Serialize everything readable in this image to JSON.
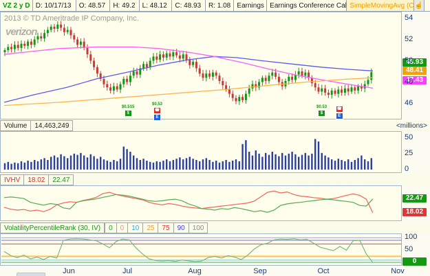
{
  "header": {
    "symbol": "VZ 2 y D",
    "fields": [
      "D: 10/17/13",
      "O: 48.57",
      "H: 49.2",
      "L: 48.12",
      "C: 48.93",
      "R: 1.08"
    ],
    "buttons": [
      "Earnings",
      "Earnings Conference Call"
    ],
    "study": "SimpleMovingAvg (CL",
    "icon": "pointer-hand-icon"
  },
  "watermark": "2013 © TD Ameritrade IP Company, Inc.",
  "logo": "verizon",
  "price_axis": {
    "ticks": [
      54,
      52,
      50,
      48,
      46
    ],
    "labels": [
      {
        "value": "48.93",
        "color": "#129a12"
      },
      {
        "value": "48.41",
        "color": "#f2a20d"
      },
      {
        "value": "47.43",
        "color": "#fb3efb"
      }
    ]
  },
  "volume": {
    "title": "Volume",
    "value": "14,463,249",
    "unit": "<millions>",
    "yticks": [
      50,
      25,
      0
    ]
  },
  "ivhv": {
    "title": "IVHV",
    "iv_value": "18.02",
    "hv_value": "22.47",
    "labels": [
      {
        "value": "22.47",
        "color": "#129a12"
      },
      {
        "value": "18.02",
        "color": "#e03535"
      }
    ]
  },
  "vpr": {
    "title": "VolatilityPercentileRank (30, IV)",
    "levels": [
      {
        "value": "0",
        "color": "#2e9e2e"
      },
      {
        "value": "0",
        "color": "#f08ca0"
      },
      {
        "value": "10",
        "color": "#30aee0"
      },
      {
        "value": "25",
        "color": "#f0a030"
      },
      {
        "value": "75",
        "color": "#e03030"
      },
      {
        "value": "90",
        "color": "#4040f0"
      },
      {
        "value": "100",
        "color": "#8c8c8c"
      }
    ],
    "yticks": [
      "100",
      "50"
    ],
    "current": "0"
  },
  "months": [
    "Jun",
    "Jul",
    "Aug",
    "Sep",
    "Oct",
    "Nov"
  ],
  "chart_data": [
    {
      "type": "candlestick",
      "title": "VZ daily price",
      "ylim": [
        44.5,
        54.55
      ],
      "yticks": [
        54,
        52,
        50,
        48,
        46
      ],
      "last_close": 48.93,
      "closes": [
        51.0,
        51.3,
        51.1,
        51.5,
        51.2,
        51.6,
        51.4,
        51.8,
        51.5,
        52.0,
        52.3,
        52.1,
        52.6,
        52.9,
        53.2,
        53.0,
        53.4,
        53.1,
        52.7,
        52.9,
        52.4,
        52.0,
        51.5,
        51.8,
        51.2,
        50.6,
        50.0,
        49.4,
        48.8,
        48.3,
        47.8,
        47.5,
        47.2,
        47.6,
        47.3,
        47.8,
        48.3,
        48.0,
        48.6,
        49.0,
        48.7,
        49.3,
        49.7,
        49.4,
        50.0,
        50.4,
        50.1,
        50.6,
        50.3,
        50.7,
        50.4,
        50.8,
        50.5,
        50.2,
        50.6,
        50.1,
        49.6,
        49.9,
        49.3,
        48.8,
        48.4,
        48.8,
        48.5,
        48.9,
        48.6,
        48.1,
        47.7,
        47.3,
        46.9,
        46.5,
        46.2,
        46.6,
        46.3,
        46.9,
        47.4,
        47.8,
        47.5,
        48.0,
        48.4,
        48.1,
        48.6,
        48.9,
        48.5,
        48.0,
        47.6,
        48.1,
        48.5,
        48.2,
        48.7,
        49.0,
        48.6,
        48.9,
        48.4,
        47.9,
        47.5,
        47.1,
        47.4,
        47.0,
        46.8,
        47.2,
        46.9,
        47.3,
        47.0,
        47.4,
        47.1,
        47.5,
        47.2,
        47.6,
        47.4,
        47.8,
        48.2,
        48.93
      ],
      "up_color": "#149614",
      "down_color": "#c23b3b",
      "overlays": [
        {
          "name": "SimpleMovingAvg-blue",
          "color": "#5a5af0",
          "end_value": 49.05,
          "points": [
            [
              0,
              46.1
            ],
            [
              0.08,
              46.8
            ],
            [
              0.17,
              47.5
            ],
            [
              0.25,
              48.3
            ],
            [
              0.33,
              48.9
            ],
            [
              0.42,
              49.6
            ],
            [
              0.5,
              50.1
            ],
            [
              0.57,
              50.4
            ],
            [
              0.63,
              50.3
            ],
            [
              0.7,
              50.0
            ],
            [
              0.78,
              49.7
            ],
            [
              0.86,
              49.4
            ],
            [
              0.93,
              49.2
            ],
            [
              1,
              49.05
            ]
          ]
        },
        {
          "name": "SimpleMovingAvg-magenta",
          "color": "#fb5ffb",
          "end_value": 47.43,
          "points": [
            [
              0,
              50.6
            ],
            [
              0.08,
              50.9
            ],
            [
              0.15,
              51.15
            ],
            [
              0.25,
              51.3
            ],
            [
              0.35,
              51.3
            ],
            [
              0.42,
              51.15
            ],
            [
              0.5,
              50.8
            ],
            [
              0.57,
              50.4
            ],
            [
              0.65,
              49.8
            ],
            [
              0.72,
              49.2
            ],
            [
              0.8,
              48.6
            ],
            [
              0.88,
              48.1
            ],
            [
              0.95,
              47.7
            ],
            [
              1,
              47.43
            ]
          ]
        },
        {
          "name": "SimpleMovingAvg-orange",
          "color": "#ffb34d",
          "end_value": 48.41,
          "points": [
            [
              0,
              45.8
            ],
            [
              0.15,
              46.1
            ],
            [
              0.3,
              46.5
            ],
            [
              0.45,
              46.9
            ],
            [
              0.6,
              47.3
            ],
            [
              0.72,
              47.7
            ],
            [
              0.82,
              48.0
            ],
            [
              0.92,
              48.25
            ],
            [
              1,
              48.41
            ]
          ]
        }
      ],
      "markers": [
        {
          "x": 0.338,
          "label": "$0.515",
          "type": "dividend"
        },
        {
          "x": 0.417,
          "label": "$0.53",
          "type": "earnings+dividend"
        },
        {
          "x": 0.863,
          "label": "$0.53",
          "type": "dividend"
        },
        {
          "x": 0.911,
          "label": "",
          "type": "earnings"
        }
      ]
    },
    {
      "type": "bar",
      "title": "Volume (millions)",
      "color": "#2a3f9f",
      "ylim": [
        0,
        55
      ],
      "yticks": [
        50,
        25,
        0
      ],
      "values": [
        10,
        12,
        9,
        11,
        10,
        13,
        11,
        14,
        12,
        15,
        13,
        16,
        18,
        15,
        20,
        22,
        19,
        24,
        21,
        18,
        22,
        25,
        23,
        26,
        22,
        19,
        24,
        21,
        17,
        20,
        16,
        14,
        12,
        15,
        13,
        17,
        36,
        32,
        28,
        22,
        18,
        15,
        17,
        14,
        12,
        11,
        13,
        12,
        14,
        16,
        13,
        15,
        17,
        19,
        16,
        18,
        20,
        17,
        15,
        13,
        16,
        18,
        15,
        12,
        14,
        11,
        13,
        15,
        12,
        14,
        16,
        13,
        40,
        46,
        28,
        22,
        30,
        25,
        20,
        26,
        23,
        28,
        24,
        21,
        26,
        22,
        25,
        28,
        24,
        20,
        23,
        26,
        22,
        25,
        48,
        44,
        26,
        22,
        19,
        16,
        14,
        17,
        15,
        13,
        16,
        12,
        15,
        18,
        22,
        16,
        13,
        18
      ]
    },
    {
      "type": "line",
      "title": "IVHV",
      "ylim": [
        15.4,
        26.6
      ],
      "series": [
        {
          "name": "IV",
          "color": "#ee6655",
          "last": 18.02,
          "values": [
            19.8,
            19.2,
            18.9,
            19.1,
            18.6,
            18.9,
            18.4,
            19.2,
            20.6,
            21.2,
            21.6,
            21.4,
            22.0,
            22.4,
            23.0,
            24.2,
            24.6,
            23.9,
            23.4,
            23.0,
            22.6,
            22.2,
            21.4,
            20.9,
            20.6,
            21.0,
            20.7,
            20.2,
            19.8,
            19.6,
            19.4,
            19.7,
            19.9,
            20.2,
            20.4,
            20.7,
            20.9,
            21.2,
            21.8,
            23.2,
            24.6,
            25.0,
            24.4,
            24.7,
            23.9,
            23.4,
            23.2,
            22.9,
            22.7,
            22.4,
            22.6,
            23.1,
            23.6,
            24.1,
            23.6,
            22.4,
            18.02
          ]
        },
        {
          "name": "HV",
          "color": "#55aa55",
          "last": 22.47,
          "values": [
            22.9,
            23.1,
            22.9,
            22.6,
            21.4,
            20.9,
            20.5,
            21.0,
            20.7,
            19.6,
            19.3,
            21.4,
            21.9,
            22.2,
            22.5,
            23.0,
            23.4,
            23.9,
            23.7,
            23.4,
            22.9,
            22.4,
            21.9,
            21.7,
            21.9,
            22.2,
            22.4,
            21.9,
            20.9,
            20.2,
            19.4,
            19.2,
            18.9,
            19.4,
            19.2,
            19.7,
            19.4,
            18.9,
            18.4,
            18.7,
            18.2,
            18.9,
            20.4,
            20.9,
            21.2,
            21.4,
            21.7,
            21.9,
            22.2,
            22.4,
            22.2,
            21.9,
            21.7,
            21.4,
            20.4,
            20.2,
            22.47
          ]
        }
      ]
    },
    {
      "type": "line",
      "title": "VolatilityPercentileRank (30, IV)",
      "ylim": [
        -10,
        115
      ],
      "yticks": [
        100,
        50,
        0
      ],
      "ref_lines": [
        {
          "v": 100,
          "color": "#b0b0d8"
        },
        {
          "v": 90,
          "color": "#9090cc"
        },
        {
          "v": 75,
          "color": "#e86a6a"
        },
        {
          "v": 25,
          "color": "#f7c55e"
        },
        {
          "v": 10,
          "color": "#7ecbe0"
        },
        {
          "v": 2,
          "color": "#f2b6c6"
        },
        {
          "v": 0,
          "color": "#98cc98"
        }
      ],
      "series": [
        {
          "name": "VPR",
          "color": "#7cb87c",
          "last": 0,
          "values": [
            45,
            28,
            20,
            30,
            15,
            22,
            12,
            25,
            18,
            90,
            95,
            96,
            95,
            92,
            88,
            75,
            60,
            85,
            95,
            92,
            60,
            35,
            15,
            8,
            6,
            8,
            5,
            10,
            7,
            4,
            6,
            20,
            25,
            18,
            28,
            22,
            12,
            30,
            55,
            72,
            78,
            92,
            95,
            94,
            96,
            92,
            94,
            78,
            62,
            55,
            48,
            65,
            50,
            88,
            90,
            35,
            0
          ]
        }
      ]
    }
  ]
}
